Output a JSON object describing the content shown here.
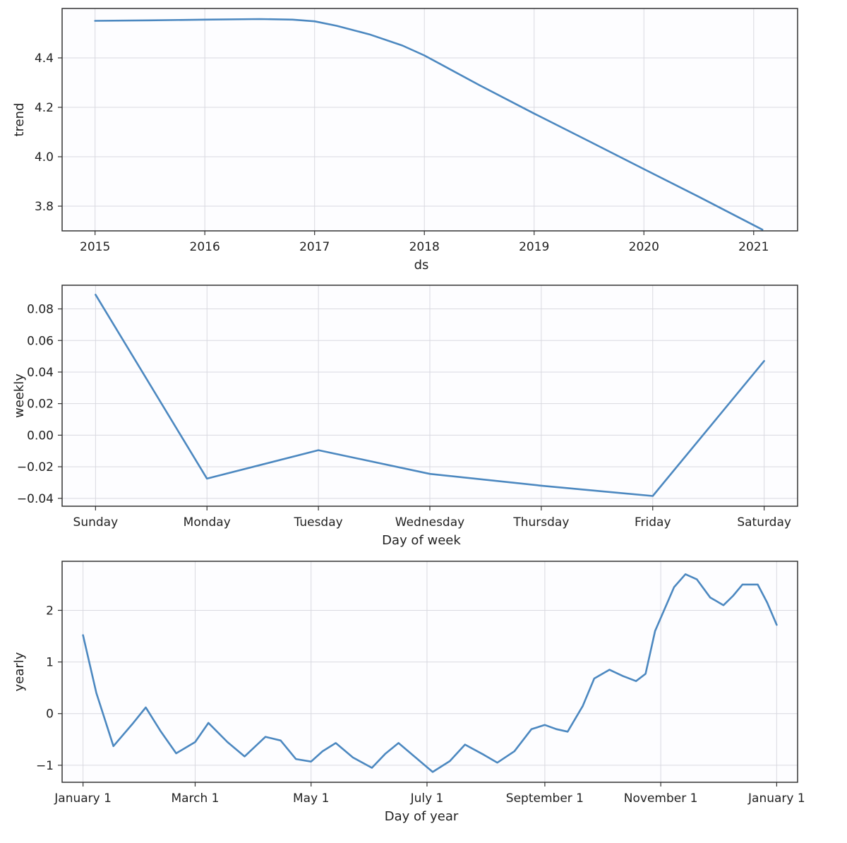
{
  "colors": {
    "series": "#4c88c0",
    "grid": "#d9d9e0",
    "axes": "#333333",
    "text": "#222222"
  },
  "chart_data": [
    {
      "type": "line",
      "name": "trend",
      "xlabel": "ds",
      "ylabel": "trend",
      "grid": true,
      "xlim": [
        2014.7,
        2021.4
      ],
      "ylim": [
        3.7,
        4.6
      ],
      "xticks": [
        2015,
        2016,
        2017,
        2018,
        2019,
        2020,
        2021
      ],
      "xtick_labels": [
        "2015",
        "2016",
        "2017",
        "2018",
        "2019",
        "2020",
        "2021"
      ],
      "yticks": [
        3.8,
        4.0,
        4.2,
        4.4
      ],
      "ytick_labels": [
        "3.8",
        "4.0",
        "4.2",
        "4.4"
      ],
      "series": [
        {
          "name": "trend",
          "x": [
            2015.0,
            2015.5,
            2016.0,
            2016.5,
            2016.8,
            2017.0,
            2017.2,
            2017.5,
            2017.8,
            2018.0,
            2018.5,
            2019.0,
            2019.5,
            2020.0,
            2020.5,
            2021.08
          ],
          "y": [
            4.55,
            4.552,
            4.555,
            4.557,
            4.555,
            4.548,
            4.53,
            4.495,
            4.45,
            4.41,
            4.29,
            4.175,
            4.063,
            3.95,
            3.838,
            3.705
          ]
        }
      ]
    },
    {
      "type": "line",
      "name": "weekly",
      "xlabel": "Day of week",
      "ylabel": "weekly",
      "grid": true,
      "xlim": [
        -0.3,
        6.3
      ],
      "ylim": [
        -0.045,
        0.095
      ],
      "xticks": [
        0,
        1,
        2,
        3,
        4,
        5,
        6
      ],
      "xtick_labels": [
        "Sunday",
        "Monday",
        "Tuesday",
        "Wednesday",
        "Thursday",
        "Friday",
        "Saturday"
      ],
      "yticks": [
        -0.04,
        -0.02,
        0.0,
        0.02,
        0.04,
        0.06,
        0.08
      ],
      "ytick_labels": [
        "−0.04",
        "−0.02",
        "0.00",
        "0.02",
        "0.04",
        "0.06",
        "0.08"
      ],
      "series": [
        {
          "name": "weekly",
          "x": [
            0,
            1,
            2,
            3,
            4,
            5,
            6
          ],
          "y": [
            0.089,
            -0.0275,
            -0.0095,
            -0.0245,
            -0.032,
            -0.0385,
            0.047
          ]
        }
      ]
    },
    {
      "type": "line",
      "name": "yearly",
      "xlabel": "Day of year",
      "ylabel": "yearly",
      "grid": true,
      "xlim": [
        -11,
        376
      ],
      "ylim": [
        -1.33,
        2.95
      ],
      "xticks": [
        0,
        59,
        120,
        181,
        243,
        304,
        365
      ],
      "xtick_labels": [
        "January 1",
        "March 1",
        "May 1",
        "July 1",
        "September 1",
        "November 1",
        "January 1"
      ],
      "yticks": [
        -1,
        0,
        1,
        2
      ],
      "ytick_labels": [
        "−1",
        "0",
        "1",
        "2"
      ],
      "series": [
        {
          "name": "yearly",
          "x": [
            0,
            7,
            16,
            26,
            33,
            41,
            49,
            59,
            66,
            76,
            85,
            96,
            104,
            112,
            120,
            126,
            133,
            142,
            152,
            159,
            166,
            175,
            184,
            193,
            201,
            211,
            218,
            227,
            236,
            243,
            249,
            255,
            263,
            269,
            277,
            284,
            291,
            296,
            301,
            311,
            317,
            323,
            330,
            337,
            342,
            347,
            355,
            360,
            365
          ],
          "y": [
            1.52,
            0.4,
            -0.63,
            -0.2,
            0.12,
            -0.35,
            -0.77,
            -0.55,
            -0.18,
            -0.55,
            -0.83,
            -0.45,
            -0.52,
            -0.88,
            -0.93,
            -0.73,
            -0.57,
            -0.85,
            -1.05,
            -0.78,
            -0.57,
            -0.85,
            -1.13,
            -0.92,
            -0.6,
            -0.8,
            -0.95,
            -0.73,
            -0.3,
            -0.22,
            -0.3,
            -0.35,
            0.15,
            0.68,
            0.85,
            0.73,
            0.63,
            0.77,
            1.6,
            2.45,
            2.7,
            2.6,
            2.25,
            2.1,
            2.28,
            2.5,
            2.5,
            2.15,
            1.72
          ]
        }
      ]
    }
  ]
}
